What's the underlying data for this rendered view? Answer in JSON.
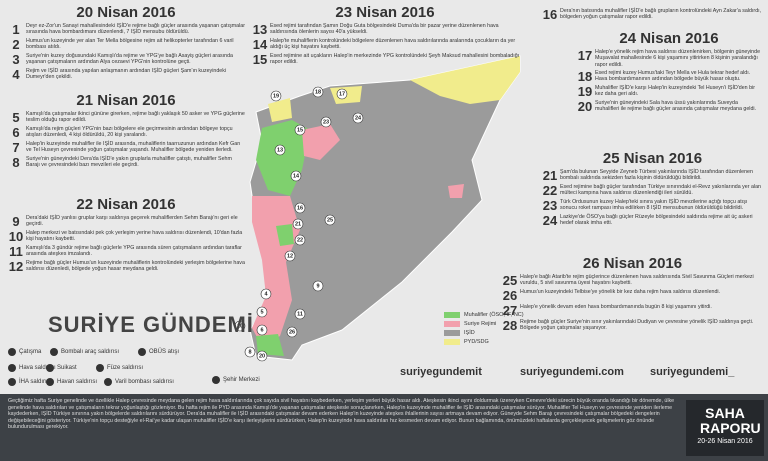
{
  "sections": [
    {
      "title": "20 Nisan 2016",
      "items": [
        {
          "num": 1,
          "text": "Deyr ez-Zor'un Sanayi mahallesindeki IŞİD'e rejime bağlı güçler arasında yaşanan çatışmalar sırasında hava bombardımanı düzenlendi, 7 IŞİD mensubu öldürüldü."
        },
        {
          "num": 2,
          "text": "Humus'un kuzeyinde yer alan Ter Mella bölgesine rejim ait helikopterler tarafından 6 varil bombası atıldı."
        },
        {
          "num": 3,
          "text": "Suriye'nin kuzey doğusundaki Kamışlı'da rejime ve YPG'ye bağlı Asayiş güçleri arasında yaşanan çatışmaların ardından Alya cezaevi YPG'nin kontrolüne geçti."
        },
        {
          "num": 4,
          "text": "Rejim ve IŞİD arasında yapılan anlaşmanın ardından IŞİD güçleri Şam'ın kuzeyindeki Dumeyr'den çekildi."
        }
      ]
    },
    {
      "title": "21 Nisan 2016",
      "items": [
        {
          "num": 5,
          "text": "Kamışlı'da çatışmalar ikinci gününe girerken, rejime bağlı yaklaşık 50 asker ve YPG güçlerine teslim olduğu rapor edildi."
        },
        {
          "num": 6,
          "text": "Kamışlı'da rejim güçleri YPG'nin bazı bölgelere ele geçirmesinin ardından bölgeye topçu atışları düzenledi, 4 kişi öldürüldü, 20 kişi yaralandı."
        },
        {
          "num": 7,
          "text": "Halep'in kuzeyinde muhalifler ile IŞİD arasında, muhaliflerin taarruzunun ardından Kefr Gan ve Tel Huseyn çevresinde yoğun çatışmalar yaşandı. Muhalifler bölgede yeniden ilerledi."
        },
        {
          "num": 8,
          "text": "Suriye'nin güneyindeki Dera'da IŞİD'e yakın gruplarla muhalifler çatıştı, muhalifler Sehm Barajı ve çevresindeki bazı mevzileri ele geçirdi."
        }
      ]
    },
    {
      "title": "22 Nisan 2016",
      "items": [
        {
          "num": 9,
          "text": "Dera'daki IŞİD yanlısı gruplar karşı saldırıya geçerek muhaliflerden Sehm Barajı'nı geri ele geçirdi."
        },
        {
          "num": 10,
          "text": "Halep merkezi ve batısındaki pek çok yerleşim yerine hava saldırısı düzenlendi, 10'dan fazla kişi hayatını kaybetti."
        },
        {
          "num": 11,
          "text": "Kamışlı'da 3 gündür rejime bağlı güçlerle YPG arasında süren çatışmaların ardından taraflar arasında ateşkes imzalandı."
        },
        {
          "num": 12,
          "text": "Rejime bağlı güçler Humus'un kuzeyinde muhaliflerin kontrolündeki yerleşim bölgelerine hava saldırısı düzenledi, bölgede yoğun hasar meydana geldi."
        }
      ]
    },
    {
      "title": "23 Nisan 2016",
      "items": [
        {
          "num": 13,
          "text": "Esed rejimi tarafından Şamın Doğu Guta bölgesindeki Duma'da bir pazar yerine düzenlenen hava saldırısında ölenlerin sayısı 40'a yükseldi."
        },
        {
          "num": 14,
          "text": "Halep'te muhaliflerin kontrolündeki bölgelere düzenlenen hava saldırılarında aralarında çocukların da yer aldığı üç kişi hayatını kaybetti."
        },
        {
          "num": 15,
          "text": "Esed rejimine ait uçakların Halep'in merkezinde YPG kontrolündeki Şeyh Maksud mahallesini bombaladığı rapor edildi."
        },
        {
          "num": 16,
          "text": "Dera'nın batısında muhalifler IŞİD'e bağlı grupların kontrolündeki Ayn Zakar'a saldırdı, bölgeden yoğun çatışmalar rapor edildi."
        }
      ]
    },
    {
      "title": "24 Nisan 2016",
      "items": [
        {
          "num": 17,
          "text": "Halep'e yönelik rejim hava saldırısı düzenlenirken, bölgenin güneyinde Muşavalat mahallesinde 6 kişi yaşamını yitirirken 8 kişinin yaralandığı rapor edildi."
        },
        {
          "num": 18,
          "text": "Esed rejimi kuzey Humus'taki Teyr Mella ve Hula tekrar hedef aldı. Hava bombardımanının ardından bölgede büyük hasar oluştu."
        },
        {
          "num": 19,
          "text": "Muhalifler IŞİD'e karşı Halep'in kuzeyindeki Tel Huseyn'i IŞİD'den bir kez daha geri aldı."
        },
        {
          "num": 20,
          "text": "Suriye'nin güneyindeki Sala hava üssü yakınlarında Suveyda muhalifleri ile rejime bağlı güçler arasında çatışmalar meydana geldi."
        }
      ]
    },
    {
      "title": "25 Nisan 2016",
      "items": [
        {
          "num": 21,
          "text": "Şam'da bulunan Seyyide Zeyneb Türbesi yakınlarında IŞİD tarafından düzenlenen bombalı saldırıda sekizden fazla kişinin öldürüldüğü bildirildi."
        },
        {
          "num": 22,
          "text": "Esed rejimine bağlı güçler tarafından Türkiye sınırındaki el-Revz yakınlarında yer alan mülteci kampına hava saldırısı düzenlendiği ileri sürüldü."
        },
        {
          "num": 23,
          "text": "Türk Ordusunun kuzey Halep'teki sınıra yakın IŞİD mevzilerine açtığı topçu atışı sonucu roket rampası imha edilirken 8 IŞİD mensubunun öldürüldüğü bildirildi."
        },
        {
          "num": 24,
          "text": "Lazkiye'de ÖSO'ya bağlı güçler Rüzeyle bölgesindeki saldırıda rejime ait üç askeri hedef olarak imha etti."
        }
      ]
    },
    {
      "title": "26 Nisan 2016",
      "items": [
        {
          "num": 25,
          "text": "Halep'e bağlı Atarib'te rejim güçlerince düzenlenen hava saldırısında Sivil Savunma Güçleri merkezi vuruldu, 5 sivil savunma üyesi hayatını kaybetti."
        },
        {
          "num": 26,
          "text": "Humus'un kuzeyindeki Telbise'ye yönelik bir kez daha rejim hava saldırısı düzenlendi."
        },
        {
          "num": 27,
          "text": "Halep'e yönelik devam eden hava bombardımanında bugün 8 kişi yaşamını yitirdi."
        },
        {
          "num": 28,
          "text": "Rejime bağlı güçler Suriye'nin sınır yakınlarındaki Dudiyan ve çevresine yönelik IŞİD saldırıya geçti. Bölgede yoğun çatışmalar yaşanıyor."
        }
      ]
    }
  ],
  "map_markers": [
    19,
    18,
    17,
    24,
    23,
    15,
    13,
    14,
    16,
    21,
    22,
    12,
    9,
    4,
    5,
    6,
    11,
    10,
    25,
    26,
    8,
    20
  ],
  "legend_areas": [
    {
      "label": "Muhalifler (ÖSO, İF, NC)",
      "color": "#7fd06e"
    },
    {
      "label": "Suriye Rejimi",
      "color": "#f2a0ad"
    },
    {
      "label": "IŞİD",
      "color": "#9b9b9b"
    },
    {
      "label": "PYD/SDG",
      "color": "#f1ec8c"
    }
  ],
  "legend_icons": [
    "Çatışma",
    "Bombalı araç saldırısı",
    "OBÜS atışı",
    "Hava saldırısı",
    "Suikast",
    "Füze saldırısı",
    "İHA saldırısı",
    "Havan saldırısı",
    "Varil bombası saldırısı",
    "Şehir Merkezi"
  ],
  "brand": "SURİYE GÜNDEMİ",
  "social": [
    "suriyegundemit",
    "suriyegundemi.com",
    "suriyegundemi_"
  ],
  "footer": {
    "text": "Geçtiğimiz hafta Suriye genelinde ve özellikle Halep çevresinde meydana gelen rejim hava saldırılarında çok sayıda sivil hayatını kaybederken, yerleşim yerleri büyük hasar aldı. Ateşkesin ikinci ayını doldurmak üzereyken Cenevre'deki sürecin büyük oranda tıkandığı bir dönemde, ülke genelinde hava saldırıları ve çatışmaların tekrar yoğunlaştığı gözleniyor. Bu hafta rejim ile PYD arasında Kamışlı'de yaşanan çatışmalar ateşkesle sonuçlanırken, Halep'in kuzeyinde muhalifler ile IŞİD arasındaki çatışmalar sürüyor. Muhalifler Tel Huseyn ve çevresinde yeniden ilerleme kaydederken, IŞİD Türkiye sınırına yakın bölgelerde saldırılarını sürdürüyor. Dera'da muhalifler ile IŞİD arasındaki çatışmalar devam ederken Halep'in kuzeyinde ateşkes ihlallerinin sayısı artmaya devam ediyor. Güneyde Sehm Barajı çevresindeki çatışmalar bölgedeki dengelerin değişebileceğini gösteriyor. Türkiye'nin topçu desteğiyle el-Rai'ye kadar ulaşan muhalifler IŞİD'e karşı ilerleyişlerini sürdürürken, Halep'in kuzeyinde hava saldırıları hız kesmeden devam ediyor. Bunun bağlamında, önümüzdeki haftalarda gerçekleşecek gelişmelerin göz önünde bulundurulması gerekiyor.",
    "badge_title": "SAHA RAPORU",
    "badge_dates": "20-26 Nisan 2016"
  }
}
